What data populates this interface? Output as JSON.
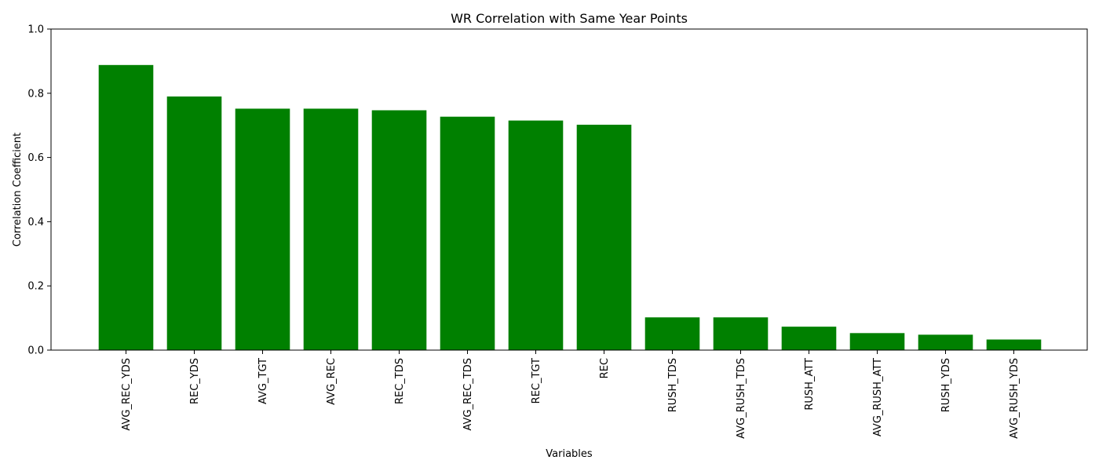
{
  "chart_data": {
    "type": "bar",
    "title": "WR Correlation with Same Year Points",
    "xlabel": "Variables",
    "ylabel": "Correlation Coefficient",
    "ylim": [
      0,
      1.0
    ],
    "yticks": [
      "0.0",
      "0.2",
      "0.4",
      "0.6",
      "0.8",
      "1.0"
    ],
    "categories": [
      "AVG_REC_YDS",
      "REC_YDS",
      "AVG_TGT",
      "AVG_REC",
      "REC_TDS",
      "AVG_REC_TDS",
      "REC_TGT",
      "REC",
      "RUSH_TDS",
      "AVG_RUSH_TDS",
      "RUSH_ATT",
      "AVG_RUSH_ATT",
      "RUSH_YDS",
      "AVG_RUSH_YDS"
    ],
    "values": [
      0.888,
      0.79,
      0.752,
      0.752,
      0.747,
      0.727,
      0.715,
      0.702,
      0.102,
      0.102,
      0.073,
      0.053,
      0.048,
      0.033
    ],
    "bar_color": "#008000",
    "grid": false,
    "legend": "none"
  }
}
